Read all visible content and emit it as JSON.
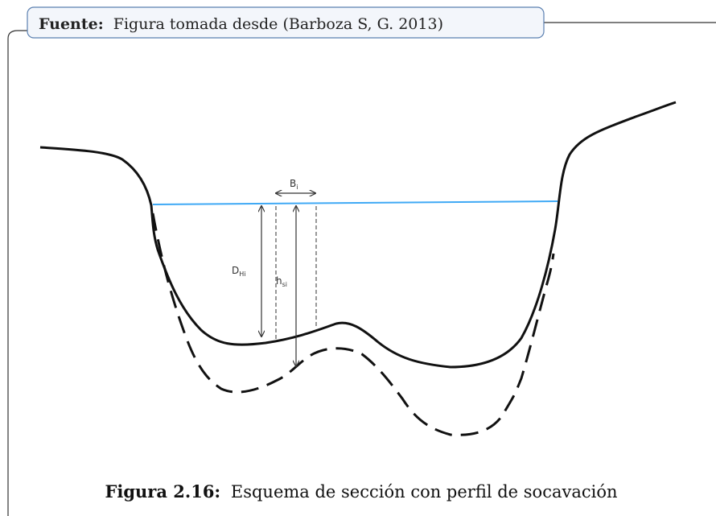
{
  "source": {
    "label": "Fuente:",
    "text": "Figura tomada desde (Barboza S, G. 2013)"
  },
  "figure": {
    "labels": {
      "width": {
        "base": "B",
        "sub": "i"
      },
      "depth": {
        "base": "D",
        "sub": "Hi"
      },
      "scour": {
        "base": "h",
        "sub": "si"
      }
    }
  },
  "caption": {
    "label": "Figura 2.16:",
    "text": "Esquema de sección con perfil de socavación"
  }
}
